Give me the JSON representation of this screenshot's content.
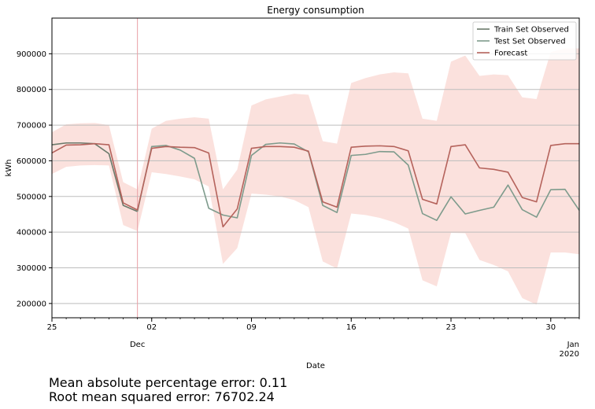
{
  "chart_data": {
    "type": "line",
    "title": "Energy consumption",
    "xlabel": "Date",
    "ylabel": "kWh",
    "x_start": "2019-11-25",
    "x_end": "2020-01-01",
    "ylim": [
      160000,
      1000000
    ],
    "yticks": [
      200000,
      300000,
      400000,
      500000,
      600000,
      700000,
      800000,
      900000
    ],
    "ytick_labels": [
      "200000",
      "300000",
      "400000",
      "500000",
      "600000",
      "700000",
      "800000",
      "900000"
    ],
    "xticks": [
      {
        "date": "2019-11-25",
        "label": "25"
      },
      {
        "date": "2019-12-02",
        "label": "02"
      },
      {
        "date": "2019-12-09",
        "label": "09"
      },
      {
        "date": "2019-12-16",
        "label": "16"
      },
      {
        "date": "2019-12-23",
        "label": "23"
      },
      {
        "date": "2019-12-30",
        "label": "30"
      }
    ],
    "xtick_secondary": [
      {
        "date": "2019-12-01",
        "label": "Dec"
      },
      {
        "date": "2020-01-01",
        "label": "Jan",
        "label2": "2020"
      }
    ],
    "grid": "horizontal",
    "legend_position": "top-right",
    "vline_date": "2019-12-01",
    "dates": [
      "2019-11-25",
      "2019-11-26",
      "2019-11-27",
      "2019-11-28",
      "2019-11-29",
      "2019-11-30",
      "2019-12-01",
      "2019-12-02",
      "2019-12-03",
      "2019-12-04",
      "2019-12-05",
      "2019-12-06",
      "2019-12-07",
      "2019-12-08",
      "2019-12-09",
      "2019-12-10",
      "2019-12-11",
      "2019-12-12",
      "2019-12-13",
      "2019-12-14",
      "2019-12-15",
      "2019-12-16",
      "2019-12-17",
      "2019-12-18",
      "2019-12-19",
      "2019-12-20",
      "2019-12-21",
      "2019-12-22",
      "2019-12-23",
      "2019-12-24",
      "2019-12-25",
      "2019-12-26",
      "2019-12-27",
      "2019-12-28",
      "2019-12-29",
      "2019-12-30",
      "2019-12-31",
      "2020-01-01"
    ],
    "series": [
      {
        "name": "Train Set Observed",
        "color": "#6b7a6b",
        "values": [
          645000,
          650000,
          650000,
          648000,
          620000,
          475000,
          458000,
          null,
          null,
          null,
          null,
          null,
          null,
          null,
          null,
          null,
          null,
          null,
          null,
          null,
          null,
          null,
          null,
          null,
          null,
          null,
          null,
          null,
          null,
          null,
          null,
          null,
          null,
          null,
          null,
          null,
          null,
          null
        ]
      },
      {
        "name": "Test Set Observed",
        "color": "#7e9b8c",
        "values": [
          null,
          null,
          null,
          null,
          null,
          null,
          458000,
          640000,
          643000,
          630000,
          607000,
          467000,
          448000,
          440000,
          615000,
          646000,
          650000,
          647000,
          625000,
          475000,
          455000,
          615000,
          618000,
          626000,
          625000,
          588000,
          452000,
          433000,
          499000,
          451000,
          461000,
          470000,
          532000,
          463000,
          442000,
          519000,
          520000,
          461000
        ]
      },
      {
        "name": "Forecast",
        "color": "#b5635c",
        "values": [
          622000,
          644000,
          645000,
          648000,
          645000,
          482000,
          462000,
          635000,
          640000,
          638000,
          637000,
          622000,
          415000,
          465000,
          635000,
          640000,
          640000,
          638000,
          627000,
          485000,
          470000,
          638000,
          641000,
          642000,
          640000,
          628000,
          492000,
          479000,
          640000,
          645000,
          580000,
          576000,
          568000,
          497000,
          485000,
          643000,
          648000,
          648000
        ]
      }
    ],
    "confidence_band": {
      "color": "#fbe1dd",
      "upper": [
        680000,
        702000,
        705000,
        706000,
        700000,
        540000,
        520000,
        690000,
        712000,
        718000,
        722000,
        718000,
        520000,
        575000,
        755000,
        772000,
        780000,
        788000,
        785000,
        655000,
        648000,
        818000,
        832000,
        842000,
        848000,
        845000,
        718000,
        712000,
        878000,
        895000,
        838000,
        842000,
        840000,
        778000,
        773000,
        905000,
        915000,
        915000
      ],
      "lower": [
        563000,
        583000,
        587000,
        588000,
        587000,
        420000,
        403000,
        568000,
        563000,
        556000,
        548000,
        528000,
        311000,
        355000,
        508000,
        505000,
        500000,
        490000,
        470000,
        318000,
        298000,
        452000,
        448000,
        440000,
        428000,
        410000,
        265000,
        248000,
        398000,
        397000,
        322000,
        308000,
        290000,
        215000,
        197000,
        343000,
        343000,
        338000
      ]
    }
  },
  "metrics": {
    "mape_text": "Mean absolute percentage error: 0.11",
    "rmse_text": "Root mean squared error: 76702.24"
  }
}
